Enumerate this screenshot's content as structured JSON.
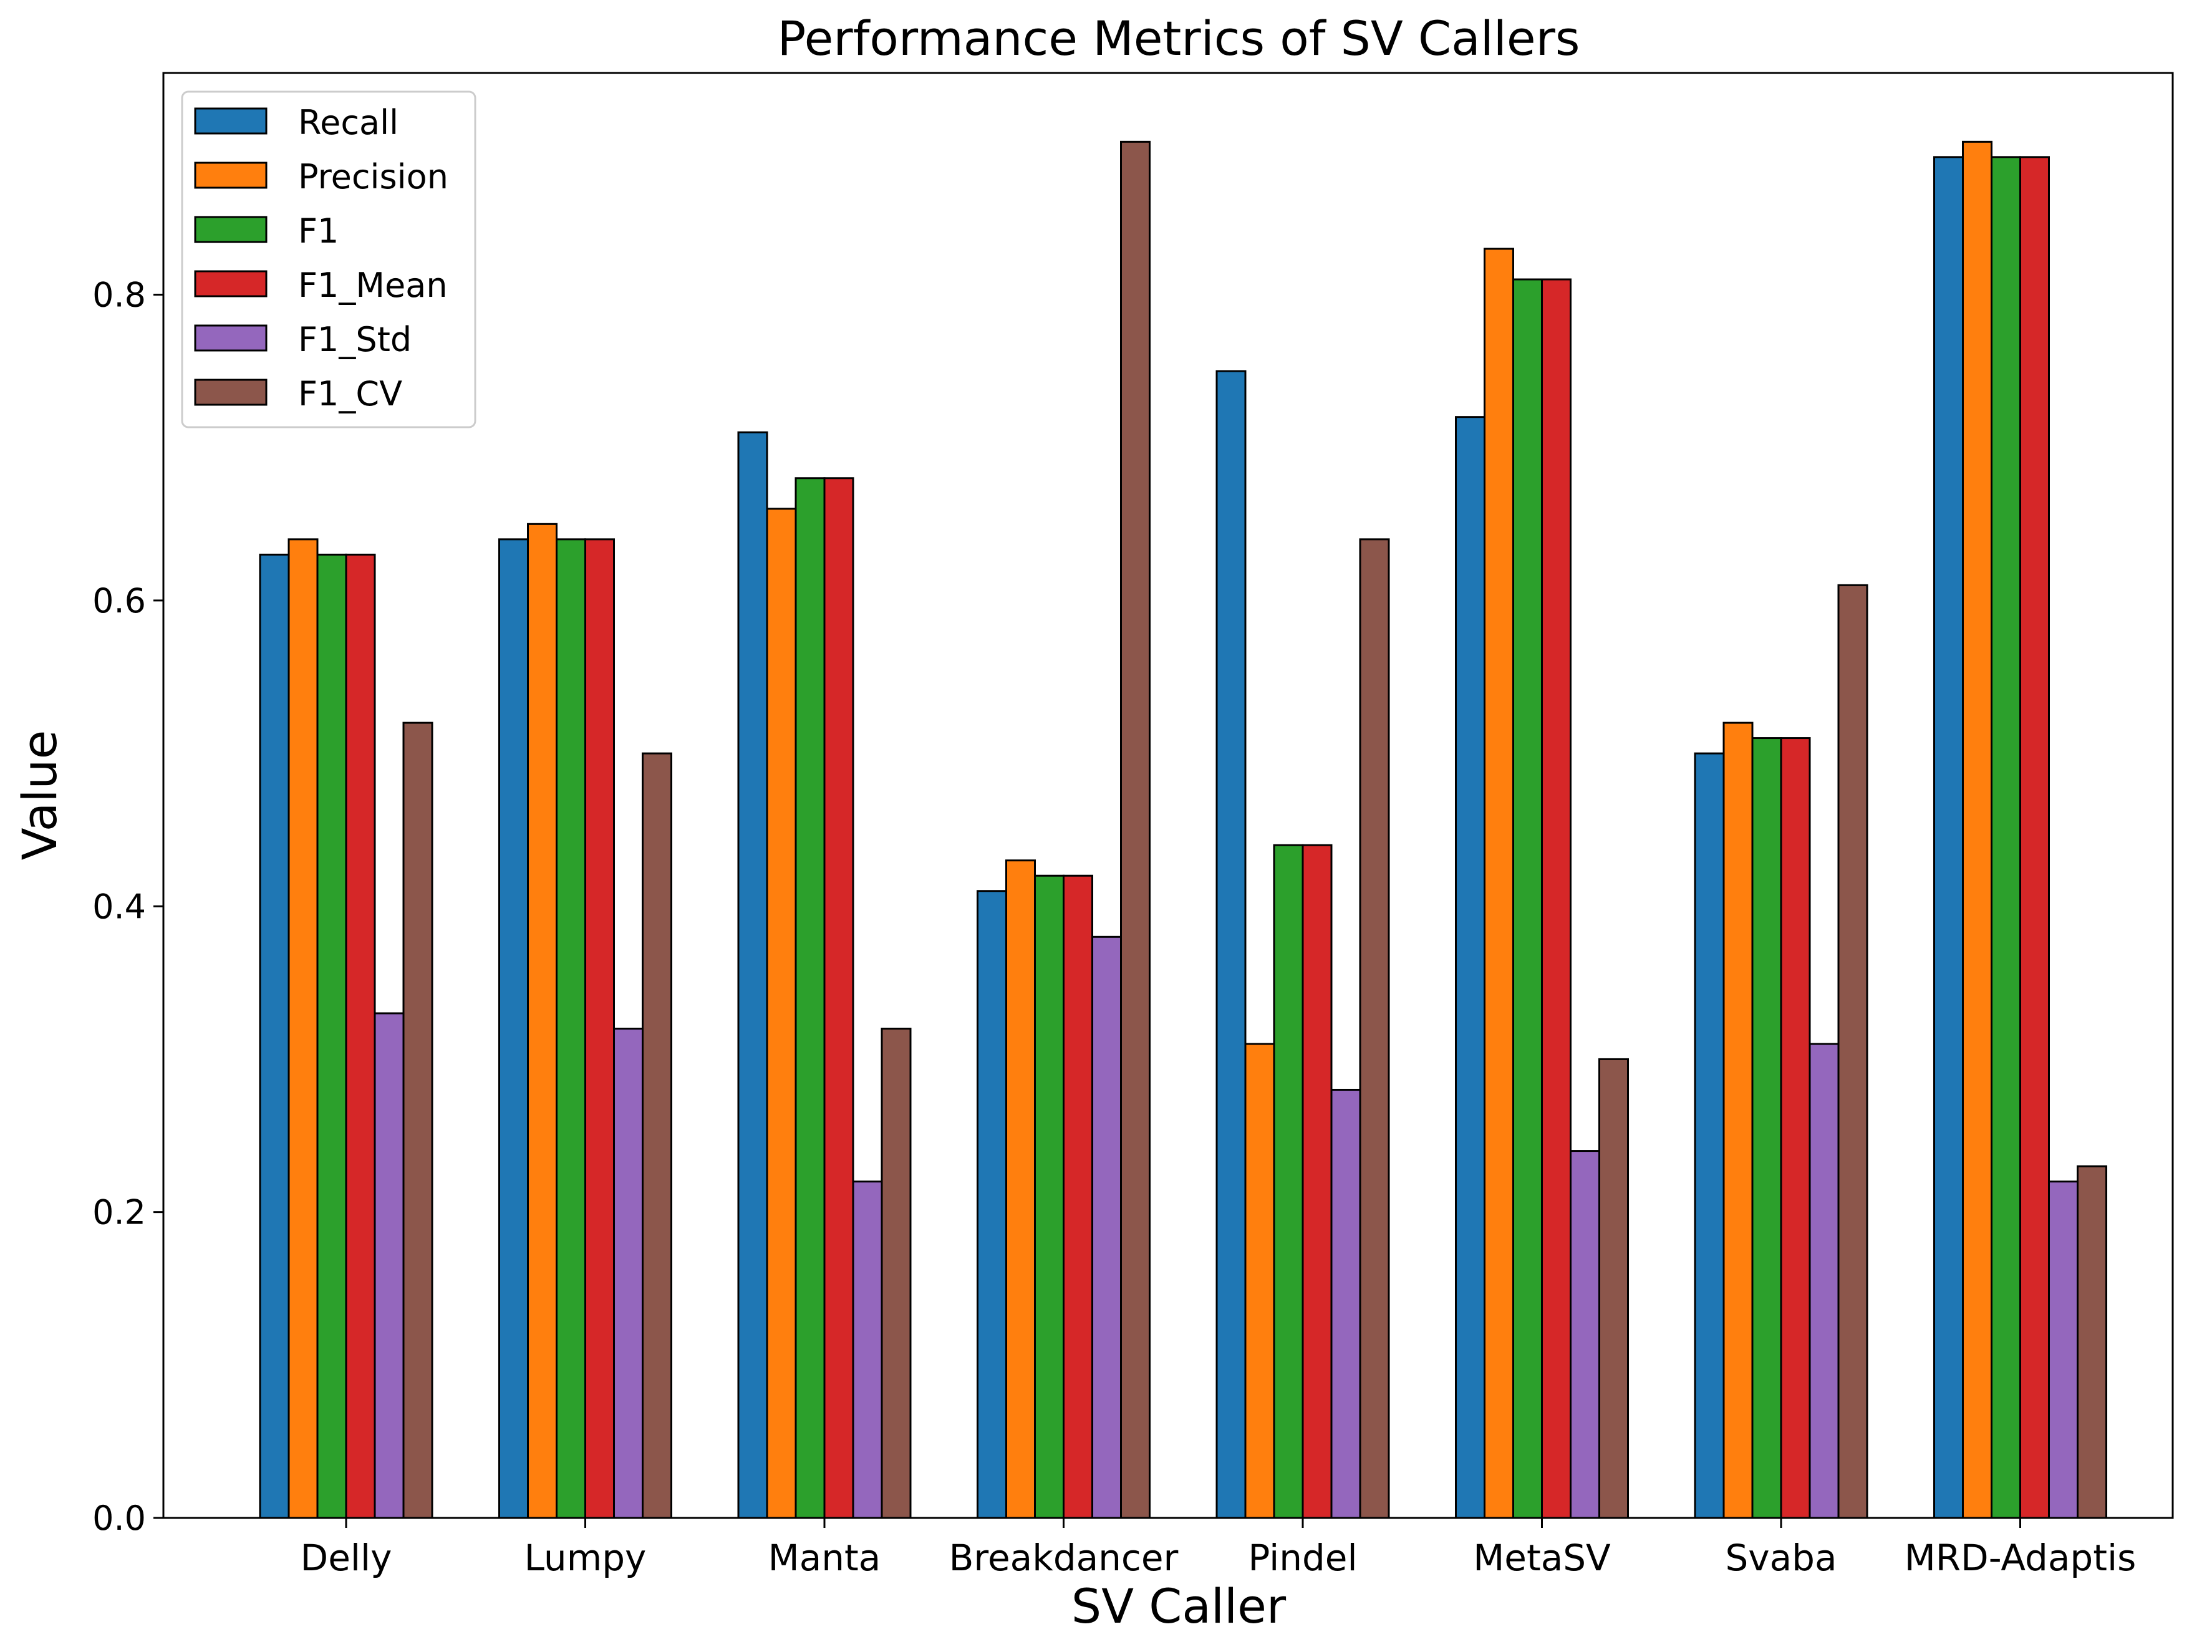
{
  "chart_data": {
    "type": "bar",
    "title": "Performance Metrics of SV Callers",
    "xlabel": "SV Caller",
    "ylabel": "Value",
    "ylim": [
      0,
      0.945
    ],
    "yticks": [
      0.0,
      0.2,
      0.4,
      0.6,
      0.8
    ],
    "ytick_labels": [
      "0.0",
      "0.2",
      "0.4",
      "0.6",
      "0.8"
    ],
    "grid": false,
    "legend_position": "top-left",
    "categories": [
      "Delly",
      "Lumpy",
      "Manta",
      "Breakdancer",
      "Pindel",
      "MetaSV",
      "Svaba",
      "MRD-Adaptis"
    ],
    "series": [
      {
        "name": "Recall",
        "color": "#1f77b4",
        "values": [
          0.63,
          0.64,
          0.71,
          0.41,
          0.75,
          0.72,
          0.5,
          0.89
        ]
      },
      {
        "name": "Precision",
        "color": "#ff7f0e",
        "values": [
          0.64,
          0.65,
          0.66,
          0.43,
          0.31,
          0.83,
          0.52,
          0.9
        ]
      },
      {
        "name": "F1",
        "color": "#2ca02c",
        "values": [
          0.63,
          0.64,
          0.68,
          0.42,
          0.44,
          0.81,
          0.51,
          0.89
        ]
      },
      {
        "name": "F1_Mean",
        "color": "#d62728",
        "values": [
          0.63,
          0.64,
          0.68,
          0.42,
          0.44,
          0.81,
          0.51,
          0.89
        ]
      },
      {
        "name": "F1_Std",
        "color": "#9467bd",
        "values": [
          0.33,
          0.32,
          0.22,
          0.38,
          0.28,
          0.24,
          0.31,
          0.22
        ]
      },
      {
        "name": "F1_CV",
        "color": "#8c564b",
        "values": [
          0.52,
          0.5,
          0.32,
          0.9,
          0.64,
          0.3,
          0.61,
          0.23
        ]
      }
    ]
  }
}
